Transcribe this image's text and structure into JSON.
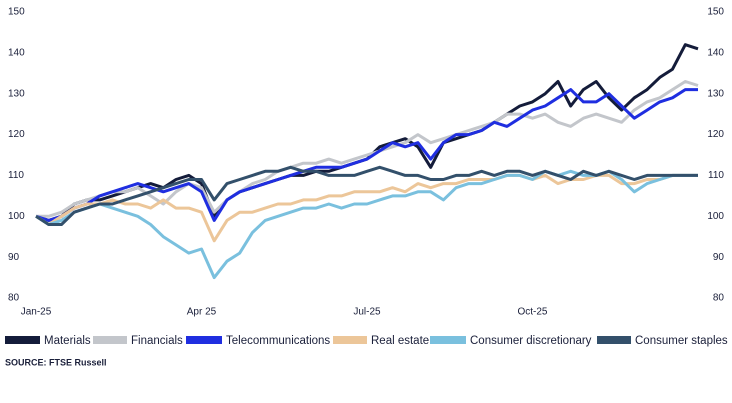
{
  "chart_data": {
    "type": "line",
    "categories": [
      "Jan-25",
      null,
      null,
      null,
      null,
      null,
      null,
      null,
      null,
      null,
      null,
      null,
      null,
      "Apr 25",
      null,
      null,
      null,
      null,
      null,
      null,
      null,
      null,
      null,
      null,
      null,
      null,
      "Jul-25",
      null,
      null,
      null,
      null,
      null,
      null,
      null,
      null,
      null,
      null,
      null,
      null,
      "Oct-25",
      null,
      null,
      null,
      null,
      null,
      null,
      null,
      null,
      null,
      null,
      null,
      null,
      null
    ],
    "series": [
      {
        "name": "Materials",
        "color": "#141c3a",
        "values": [
          100,
          99,
          100,
          103,
          104,
          104,
          105,
          106,
          107,
          108,
          107,
          109,
          110,
          108,
          100,
          104,
          106,
          107,
          108,
          109,
          110,
          110,
          111,
          111,
          112,
          113,
          114,
          117,
          118,
          119,
          117,
          112,
          118,
          119,
          120,
          121,
          123,
          125,
          127,
          128,
          130,
          133,
          127,
          131,
          133,
          129,
          126,
          129,
          131,
          134,
          136,
          142,
          141
        ]
      },
      {
        "name": "Financials",
        "color": "#c3c6cb",
        "values": [
          100,
          100,
          101,
          103,
          104,
          105,
          106,
          106,
          107,
          105,
          103,
          106,
          108,
          107,
          101,
          104,
          106,
          108,
          109,
          111,
          112,
          113,
          113,
          114,
          113,
          114,
          115,
          116,
          117,
          118,
          120,
          118,
          119,
          120,
          121,
          122,
          123,
          125,
          125,
          124,
          125,
          123,
          122,
          124,
          125,
          124,
          123,
          126,
          128,
          129,
          131,
          133,
          132
        ]
      },
      {
        "name": "Telecommunications",
        "color": "#1f2ee0",
        "values": [
          100,
          99,
          100,
          102,
          103,
          105,
          106,
          107,
          108,
          107,
          106,
          107,
          108,
          106,
          99,
          104,
          106,
          107,
          108,
          109,
          110,
          111,
          112,
          112,
          112,
          113,
          114,
          116,
          118,
          117,
          118,
          114,
          118,
          120,
          120,
          121,
          123,
          122,
          124,
          126,
          127,
          129,
          131,
          128,
          128,
          130,
          127,
          124,
          126,
          128,
          129,
          131,
          131
        ]
      },
      {
        "name": "Real estate",
        "color": "#ecc699",
        "values": [
          100,
          98,
          100,
          102,
          103,
          103,
          104,
          103,
          103,
          102,
          104,
          102,
          102,
          101,
          94,
          99,
          101,
          101,
          102,
          103,
          103,
          104,
          104,
          105,
          105,
          106,
          106,
          106,
          107,
          106,
          108,
          107,
          108,
          108,
          109,
          109,
          109,
          110,
          110,
          109,
          110,
          108,
          109,
          109,
          110,
          110,
          108,
          108,
          109,
          109,
          110,
          110,
          110
        ]
      },
      {
        "name": "Consumer discretionary",
        "color": "#7ac0de",
        "values": [
          100,
          98,
          99,
          101,
          102,
          103,
          102,
          101,
          100,
          98,
          95,
          93,
          91,
          92,
          85,
          89,
          91,
          96,
          99,
          100,
          101,
          102,
          102,
          103,
          102,
          103,
          103,
          104,
          105,
          105,
          106,
          106,
          104,
          107,
          108,
          108,
          109,
          110,
          110,
          109,
          111,
          110,
          111,
          110,
          110,
          111,
          109,
          106,
          108,
          109,
          110,
          110,
          110
        ]
      },
      {
        "name": "Consumer staples",
        "color": "#33506b",
        "values": [
          100,
          98,
          98,
          101,
          102,
          103,
          103,
          104,
          105,
          106,
          107,
          108,
          109,
          109,
          104,
          108,
          109,
          110,
          111,
          111,
          112,
          111,
          111,
          110,
          110,
          110,
          111,
          112,
          111,
          110,
          110,
          109,
          109,
          110,
          110,
          111,
          110,
          111,
          111,
          110,
          111,
          110,
          109,
          111,
          110,
          111,
          110,
          109,
          110,
          110,
          110,
          110,
          110
        ]
      }
    ],
    "ylim": [
      80,
      150
    ],
    "yticks": [
      80,
      90,
      100,
      110,
      120,
      130,
      140,
      150
    ],
    "y2lim": [
      80,
      150
    ],
    "y2ticks": [
      80,
      90,
      100,
      110,
      120,
      130,
      140,
      150
    ],
    "grid": false,
    "source": "SOURCE: FTSE Russell"
  }
}
